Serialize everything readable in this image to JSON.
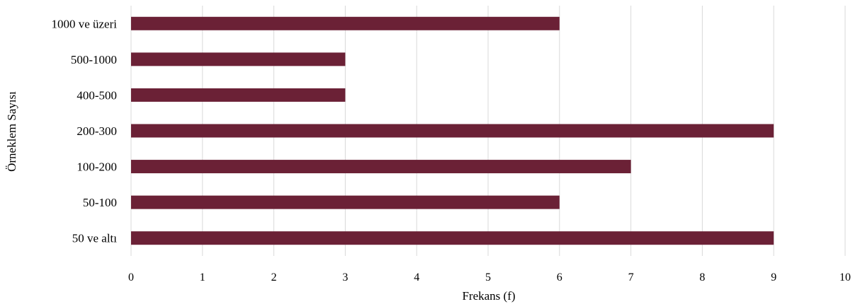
{
  "chart_data": {
    "type": "bar",
    "orientation": "horizontal",
    "categories": [
      "1000 ve üzeri",
      "500-1000",
      "400-500",
      "200-300",
      "100-200",
      "50-100",
      "50 ve altı"
    ],
    "values": [
      6,
      3,
      3,
      9,
      7,
      6,
      9
    ],
    "xlabel": "Frekans (f)",
    "ylabel": "Örneklem Sayısı",
    "xlim": [
      0,
      10
    ],
    "xticks": [
      "0",
      "1",
      "2",
      "3",
      "4",
      "5",
      "6",
      "7",
      "8",
      "9",
      "10"
    ],
    "grid": "vertical",
    "bar_color": "#6b2136"
  }
}
